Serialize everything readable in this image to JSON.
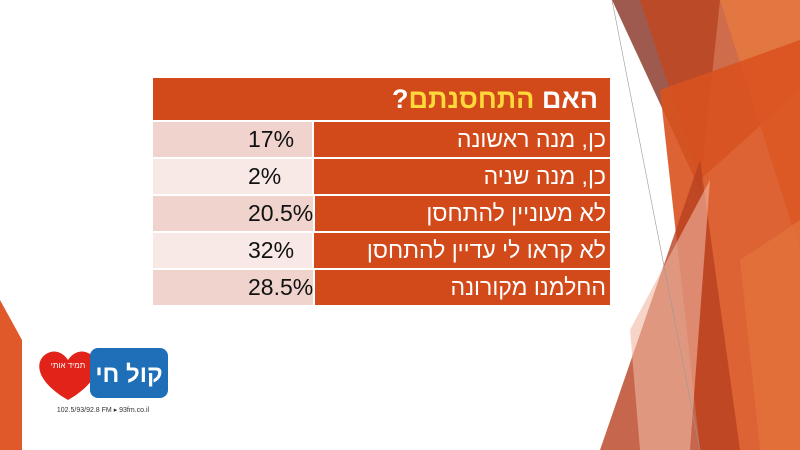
{
  "header": {
    "title": [
      "האם ",
      "התחסנתם",
      "?"
    ]
  },
  "table": {
    "rows": [
      [
        "כן, מנה ראשונה",
        "17%"
      ],
      [
        "כן, מנה שניה",
        "2%"
      ],
      [
        "לא מעוניין להתחסן",
        "20.5%"
      ],
      [
        "לא קראו לי עדיין להתחסן",
        "32%"
      ],
      [
        "החלמנו מקורונה",
        "28.5%"
      ]
    ]
  },
  "logo": {
    "name": "קול חי",
    "slogan": "תמיד אותי",
    "frequencies": "102.5/93/92.8 FM ▸ 93fm.co.il"
  }
}
